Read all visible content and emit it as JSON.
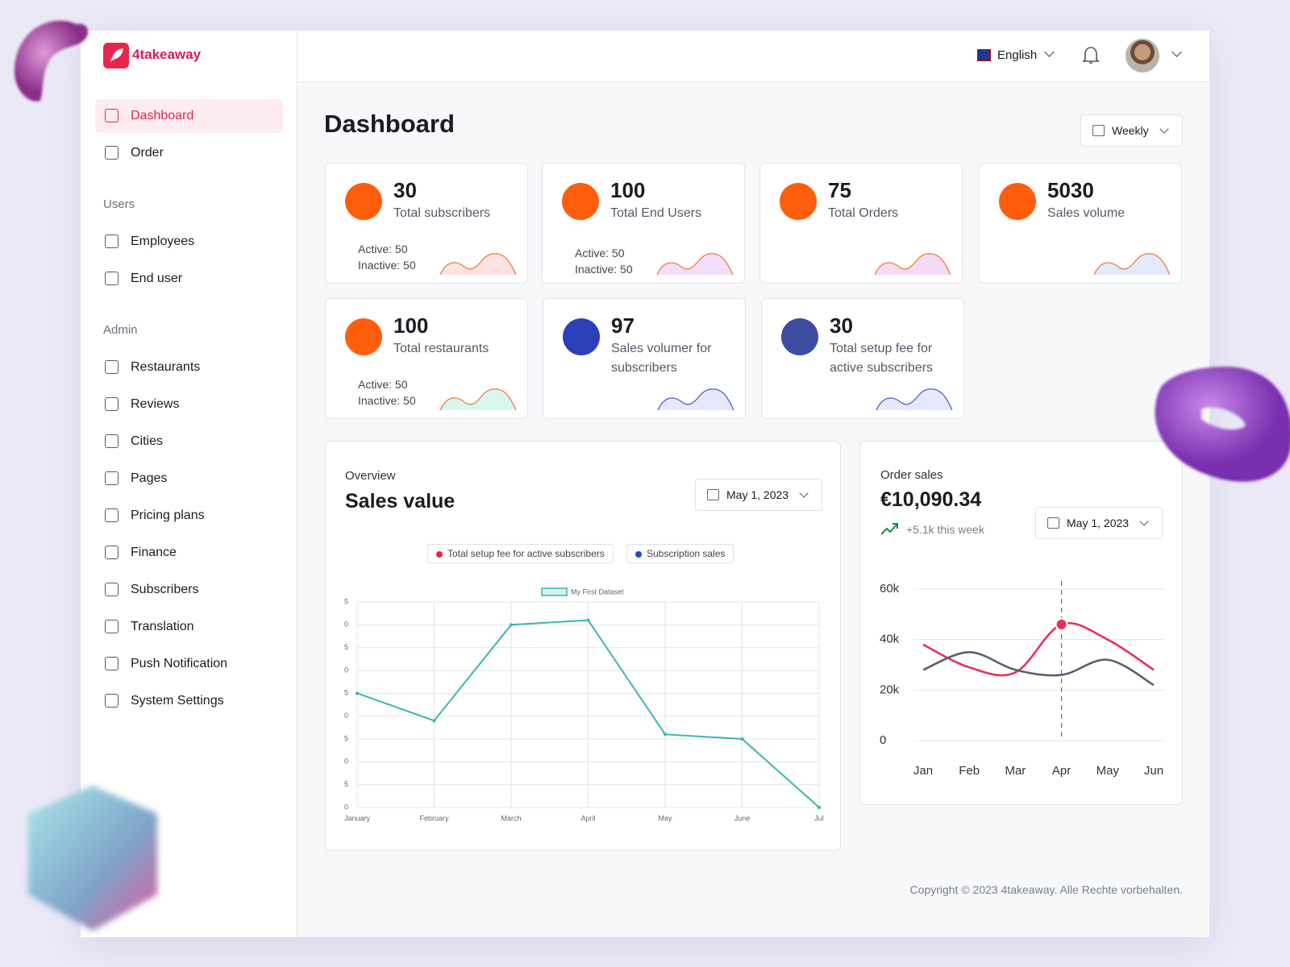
{
  "brand": "4takeaway",
  "nav": {
    "main": [
      "Dashboard",
      "Order"
    ],
    "sections": [
      {
        "title": "Users",
        "items": [
          "Employees",
          "End user"
        ]
      },
      {
        "title": "Admin",
        "items": [
          "Restaurants",
          "Reviews",
          "Cities",
          "Pages",
          "Pricing plans",
          "Finance",
          "Subscribers",
          "Translation",
          "Push Notification",
          "System Settings"
        ]
      }
    ]
  },
  "header": {
    "language": "English"
  },
  "page": {
    "title": "Dashboard",
    "period": "Weekly"
  },
  "stats": [
    {
      "value": 30,
      "label": "Total subscribers",
      "active": "Active: 50",
      "inactive": "Inactive: 50"
    },
    {
      "value": 100,
      "label": "Total End Users",
      "active": "Active: 50",
      "inactive": "Inactive: 50"
    },
    {
      "value": 75,
      "label": "Total Orders"
    },
    {
      "value": 5030,
      "label": "Sales volume"
    },
    {
      "value": 100,
      "label": "Total restaurants",
      "active": "Active: 50",
      "inactive": "Inactive: 50"
    },
    {
      "value": 97,
      "label": "Sales volumer for subscribers"
    },
    {
      "value": 30,
      "label": "Total setup fee for active subscribers"
    }
  ],
  "overview": {
    "kicker": "Overview",
    "title": "Sales value",
    "date": "May 1, 2023",
    "legend": [
      {
        "name": "Total setup fee for active subscribers",
        "color": "#e8254d"
      },
      {
        "name": "Subscription sales",
        "color": "#1a47e6"
      }
    ]
  },
  "order_sales": {
    "kicker": "Order sales",
    "amount": "€10,090.34",
    "trend": "+5.1k this week",
    "date": "May 1, 2023"
  },
  "chart_data": [
    {
      "type": "line",
      "categories": [
        "January",
        "February",
        "March",
        "April",
        "May",
        "June",
        "Jul"
      ],
      "series": [
        {
          "name": "My First Dataset",
          "color": "#3ab5b0",
          "values": [
            25,
            19,
            40,
            41,
            16,
            15,
            0
          ]
        }
      ],
      "ylim": [
        0,
        45
      ],
      "yticks": [
        0,
        5,
        {
          "value": 10,
          "label": "0"
        },
        {
          "value": 15,
          "label": "5"
        },
        {
          "value": 20,
          "label": "0"
        },
        {
          "value": 25,
          "label": "5"
        },
        {
          "value": 30,
          "label": "0"
        },
        {
          "value": 35,
          "label": "5"
        },
        {
          "value": 40,
          "label": "0"
        },
        {
          "value": 45,
          "label": "5"
        }
      ],
      "grid": true,
      "xgrid": true,
      "smooth": false,
      "legend": "top"
    },
    {
      "type": "line",
      "categories": [
        "Jan",
        "Feb",
        "Mar",
        "Apr",
        "May",
        "Jun"
      ],
      "series": [
        {
          "color": "#e8305a",
          "values": [
            38000,
            29000,
            27000,
            46000,
            40000,
            28000
          ]
        },
        {
          "color": "#5b5f6e",
          "values": [
            28000,
            35000,
            28000,
            26000,
            32000,
            22000
          ]
        }
      ],
      "ylim": [
        0,
        60000
      ],
      "yticks": [
        0,
        {
          "value": 20000,
          "label": "20k"
        },
        {
          "value": 40000,
          "label": "40k"
        },
        {
          "value": 60000,
          "label": "60k"
        }
      ],
      "grid": true,
      "xgrid": false,
      "smooth": true,
      "highlight": {
        "series": 0,
        "index": 3
      }
    }
  ],
  "footer": "Copyright © 2023 4takeaway. Alle Rechte vorbehalten."
}
